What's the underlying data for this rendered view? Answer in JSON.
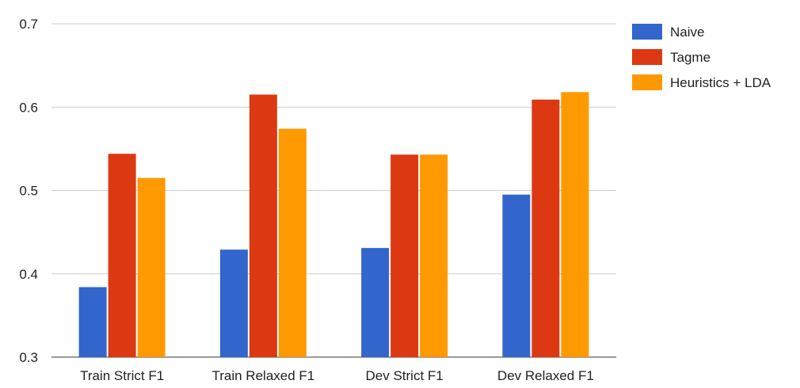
{
  "chart_data": {
    "type": "bar",
    "title": "",
    "xlabel": "",
    "ylabel": "",
    "categories": [
      "Train Strict F1",
      "Train Relaxed F1",
      "Dev Strict F1",
      "Dev Relaxed F1"
    ],
    "ylim": [
      0.3,
      0.7
    ],
    "yticks": [
      0.3,
      0.4,
      0.5,
      0.6,
      0.7
    ],
    "ytick_labels": [
      "0.3",
      "0.4",
      "0.5",
      "0.6",
      "0.7"
    ],
    "grid": true,
    "legend_position": "right",
    "series": [
      {
        "name": "Naive",
        "color": "#3366cc",
        "values": [
          0.384,
          0.429,
          0.431,
          0.495
        ]
      },
      {
        "name": "Tagme",
        "color": "#dc3912",
        "values": [
          0.544,
          0.615,
          0.543,
          0.609
        ]
      },
      {
        "name": "Heuristics + LDA",
        "color": "#ff9900",
        "values": [
          0.515,
          0.574,
          0.543,
          0.618
        ]
      }
    ]
  }
}
